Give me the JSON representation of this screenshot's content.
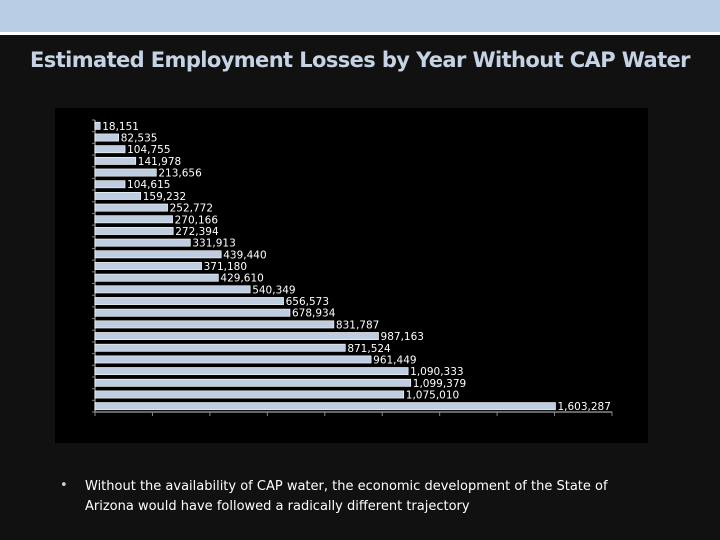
{
  "slide": {
    "bullet_text": "Without the availability of CAP water, the economic development of the State of Arizona would have followed a radically different trajectory"
  },
  "chart_data": {
    "type": "bar",
    "orientation": "horizontal",
    "title": "Estimated Employment Losses by Year Without CAP Water",
    "values": [
      18151,
      82535,
      104755,
      141978,
      213656,
      104615,
      159232,
      252772,
      270166,
      272394,
      331913,
      439440,
      371180,
      429610,
      540349,
      656573,
      678934,
      831787,
      987163,
      871524,
      961449,
      1090333,
      1099379,
      1075010,
      1603287
    ],
    "labels": [
      "18,151",
      "82,535",
      "104,755",
      "141,978",
      "213,656",
      "104,615",
      "159,232",
      "252,772",
      "270,166",
      "272,394",
      "331,913",
      "439,440",
      "371,180",
      "429,610",
      "540,349",
      "656,573",
      "678,934",
      "831,787",
      "987,163",
      "871,524",
      "961,449",
      "1,090,333",
      "1,099,379",
      "1,075,010",
      "1,603,287"
    ],
    "xlim": [
      0,
      1800000
    ],
    "x_tick_step": 200000,
    "grid": false,
    "bar_color": "#bfcde0",
    "background": "#000000"
  }
}
